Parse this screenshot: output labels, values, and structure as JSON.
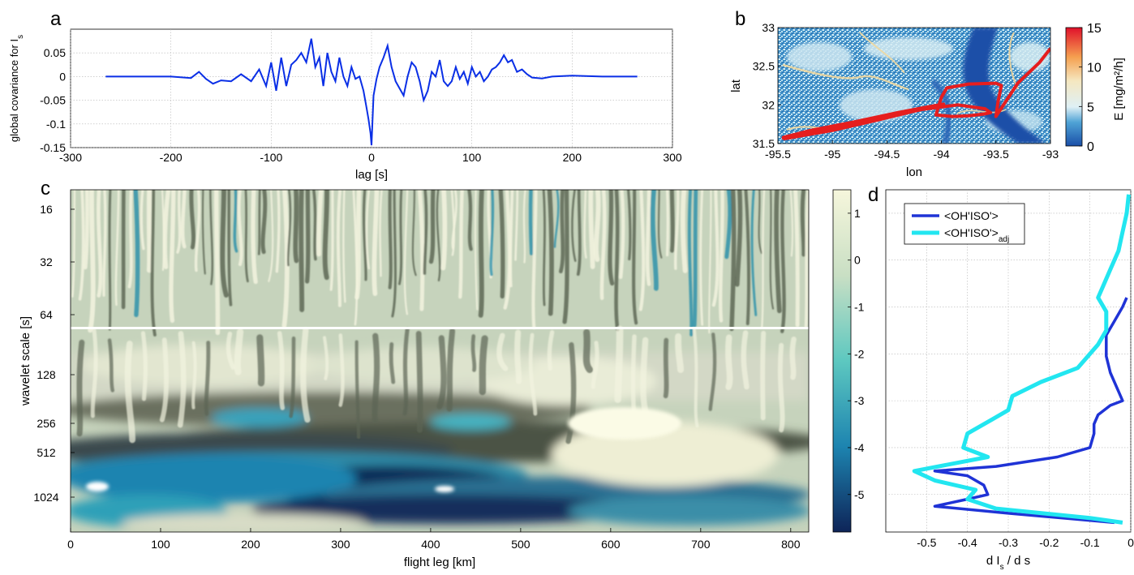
{
  "panels": {
    "a": {
      "letter": "a"
    },
    "b": {
      "letter": "b"
    },
    "c": {
      "letter": "c"
    },
    "d": {
      "letter": "d"
    }
  },
  "colors": {
    "line_blue": "#0a2fe6",
    "track_red": "#e61e1e",
    "d_dark": "#1f33d6",
    "d_cyan": "#22e6f0"
  },
  "chart_data": [
    {
      "id": "a",
      "type": "line",
      "title": "",
      "xlabel": "lag [s]",
      "ylabel": "global covariance for I_s",
      "xlim": [
        -300,
        300
      ],
      "ylim": [
        -0.15,
        0.1
      ],
      "xticks": [
        "-300",
        "-200",
        "-100",
        "0",
        "100",
        "200",
        "300"
      ],
      "yticks": [
        "-0.15",
        "-0.1",
        "-0.05",
        "0",
        "0.05"
      ],
      "grid": true,
      "series": [
        {
          "x": [
            -265,
            -200,
            -180,
            -172,
            -165,
            -158,
            -150,
            -140,
            -130,
            -120,
            -112,
            -105,
            -100,
            -95,
            -90,
            -85,
            -80,
            -75,
            -70,
            -65,
            -60,
            -56,
            -52,
            -48,
            -44,
            -40,
            -36,
            -32,
            -28,
            -24,
            -20,
            -16,
            -12,
            -8,
            -5,
            -3,
            -1,
            0,
            2,
            5,
            8,
            12,
            16,
            20,
            24,
            28,
            32,
            36,
            40,
            44,
            48,
            52,
            56,
            60,
            64,
            68,
            72,
            76,
            80,
            84,
            88,
            92,
            96,
            100,
            104,
            108,
            112,
            116,
            120,
            124,
            128,
            132,
            136,
            140,
            145,
            150,
            155,
            160,
            170,
            180,
            200,
            230,
            265
          ],
          "y": [
            0,
            0,
            -0.003,
            0.01,
            -0.005,
            -0.015,
            -0.008,
            -0.01,
            0.005,
            -0.01,
            0.015,
            -0.02,
            0.03,
            -0.03,
            0.04,
            -0.02,
            0.025,
            0.035,
            0.05,
            0.03,
            0.08,
            0.02,
            0.04,
            -0.02,
            0.05,
            0.01,
            -0.01,
            0.04,
            0.0,
            -0.02,
            0.02,
            -0.005,
            0.0,
            -0.03,
            -0.065,
            -0.09,
            -0.12,
            -0.145,
            -0.04,
            -0.005,
            0.02,
            0.04,
            0.065,
            0.02,
            -0.01,
            -0.025,
            -0.04,
            0.0,
            0.03,
            0.02,
            -0.01,
            -0.05,
            -0.03,
            0.01,
            0.0,
            0.035,
            -0.01,
            -0.02,
            -0.01,
            0.02,
            -0.005,
            0.01,
            -0.015,
            0.02,
            0.0,
            0.01,
            -0.01,
            0.0,
            0.015,
            0.02,
            0.03,
            0.045,
            0.03,
            0.035,
            0.01,
            0.015,
            0.005,
            -0.002,
            -0.004,
            0.0,
            0.002,
            0.0,
            0.0
          ]
        }
      ]
    },
    {
      "id": "b",
      "type": "heatmap",
      "title": "",
      "xlabel": "lon",
      "ylabel": "lat",
      "xlim": [
        -95.5,
        -93
      ],
      "ylim": [
        31.5,
        33
      ],
      "xticks": [
        "-95.5",
        "-95",
        "-94.5",
        "-94",
        "-93.5",
        "-93"
      ],
      "yticks": [
        "31.5",
        "32",
        "32.5",
        "33"
      ],
      "colorbar": {
        "label": "E [mg/m²/h]",
        "ticks": [
          "0",
          "5",
          "10",
          "15"
        ],
        "range": [
          0,
          15
        ]
      },
      "track": {
        "lon": [
          -95.45,
          -95.0,
          -94.6,
          -94.25,
          -94.02,
          -93.98,
          -94.1,
          -94.4,
          -94.8,
          -95.2,
          -95.45,
          -95.45,
          -95.0,
          -94.6,
          -94.3,
          -93.85,
          -93.6,
          -93.55,
          -93.62,
          -93.75,
          -93.9,
          -94.05,
          -94.0,
          -93.95,
          -93.75,
          -93.5,
          -93.45,
          -93.48,
          -93.5,
          -93.3,
          -93.1,
          -93.0
        ],
        "lat": [
          31.56,
          31.67,
          31.8,
          31.92,
          31.99,
          32.01,
          31.98,
          31.9,
          31.78,
          31.67,
          31.58,
          31.57,
          31.7,
          31.82,
          31.92,
          32.0,
          31.95,
          31.9,
          31.88,
          31.86,
          31.85,
          31.87,
          32.1,
          32.22,
          32.27,
          32.28,
          32.25,
          32.05,
          31.85,
          32.28,
          32.55,
          32.73
        ]
      }
    },
    {
      "id": "c",
      "type": "heatmap",
      "title": "",
      "xlabel": "flight leg [km]",
      "ylabel": "wavelet scale [s]",
      "xlim": [
        0,
        820
      ],
      "xticks": [
        "0",
        "100",
        "200",
        "300",
        "400",
        "500",
        "600",
        "700",
        "800"
      ],
      "yticks": [
        "16",
        "32",
        "64",
        "128",
        "256",
        "512",
        "1024"
      ],
      "colorbar": {
        "ticks": [
          "1",
          "0",
          "-1",
          "-2",
          "-3",
          "-4",
          "-5"
        ],
        "range": [
          -5.8,
          1.5
        ]
      }
    },
    {
      "id": "d",
      "type": "line",
      "title": "",
      "xlabel": "d I_s / d s",
      "ylabel": "",
      "xlim": [
        -0.6,
        0
      ],
      "ylim": [
        -5.8,
        1.5
      ],
      "xticks": [
        "-0.5",
        "-0.4",
        "-0.3",
        "-0.2",
        "-0.1",
        "0"
      ],
      "legend_position": "top-left",
      "series": [
        {
          "name": "<OH'ISO'>",
          "y": [
            -0.8,
            -1.0,
            -1.3,
            -1.6,
            -1.8,
            -2.05,
            -2.4,
            -2.8,
            -3.0,
            -3.1,
            -3.3,
            -3.5,
            -3.7,
            -4.0,
            -4.2,
            -4.4,
            -4.5,
            -4.6,
            -4.8,
            -5.0,
            -5.1,
            -5.25,
            -5.4,
            -5.6
          ],
          "x": [
            -0.01,
            -0.02,
            -0.04,
            -0.06,
            -0.06,
            -0.06,
            -0.05,
            -0.03,
            -0.02,
            -0.05,
            -0.08,
            -0.09,
            -0.09,
            -0.1,
            -0.18,
            -0.33,
            -0.48,
            -0.4,
            -0.36,
            -0.35,
            -0.4,
            -0.48,
            -0.3,
            -0.04
          ]
        },
        {
          "name": "<OH'ISO'>",
          "subscript": "adj",
          "y": [
            1.4,
            1.0,
            0.6,
            0.2,
            -0.2,
            -0.6,
            -0.8,
            -1.1,
            -1.5,
            -1.8,
            -2.0,
            -2.3,
            -2.6,
            -2.9,
            -3.2,
            -3.4,
            -3.7,
            -4.0,
            -4.2,
            -4.5,
            -4.7,
            -4.9,
            -5.1,
            -5.3,
            -5.5,
            -5.6
          ],
          "x": [
            -0.005,
            -0.01,
            -0.02,
            -0.03,
            -0.05,
            -0.07,
            -0.08,
            -0.06,
            -0.06,
            -0.08,
            -0.1,
            -0.13,
            -0.22,
            -0.29,
            -0.3,
            -0.34,
            -0.4,
            -0.41,
            -0.35,
            -0.53,
            -0.48,
            -0.38,
            -0.4,
            -0.33,
            -0.1,
            -0.02
          ]
        }
      ]
    }
  ]
}
